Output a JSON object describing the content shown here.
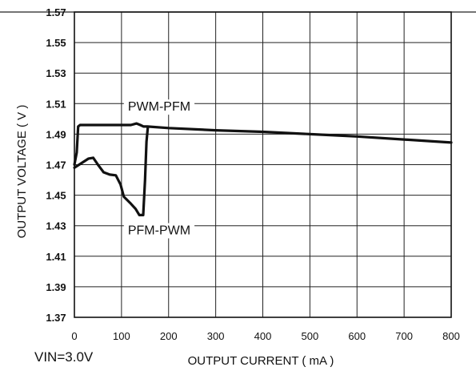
{
  "chart_data": {
    "type": "line",
    "xlabel": "OUTPUT CURRENT ( mA )",
    "ylabel": "OUTPUT VOLTAGE ( V )",
    "xlim": [
      0,
      800
    ],
    "ylim": [
      1.37,
      1.57
    ],
    "x_ticks": [
      "0",
      "100",
      "200",
      "300",
      "400",
      "500",
      "600",
      "700",
      "800"
    ],
    "y_ticks": [
      "1.37",
      "1.39",
      "1.41",
      "1.43",
      "1.45",
      "1.47",
      "1.49",
      "1.51",
      "1.53",
      "1.55",
      "1.57"
    ],
    "grid": true,
    "condition": "VIN=3.0V",
    "annotations": [
      {
        "text": "PWM-PFM",
        "x": 180,
        "y": 1.5085
      },
      {
        "text": "PFM-PWM",
        "x": 180,
        "y": 1.4275
      }
    ],
    "series": [
      {
        "values": [
          [
            0,
            1.47
          ],
          [
            5,
            1.478
          ],
          [
            8,
            1.495
          ],
          [
            12,
            1.496
          ],
          [
            60,
            1.496
          ],
          [
            120,
            1.496
          ],
          [
            132,
            1.497
          ],
          [
            140,
            1.496
          ],
          [
            147,
            1.495
          ],
          [
            155,
            1.495
          ],
          [
            200,
            1.494
          ],
          [
            300,
            1.4925
          ],
          [
            400,
            1.4915
          ],
          [
            500,
            1.49
          ],
          [
            600,
            1.4885
          ],
          [
            700,
            1.4865
          ],
          [
            800,
            1.4845
          ]
        ]
      },
      {
        "values": [
          [
            0,
            1.468
          ],
          [
            15,
            1.471
          ],
          [
            30,
            1.474
          ],
          [
            40,
            1.4745
          ],
          [
            50,
            1.47
          ],
          [
            62,
            1.465
          ],
          [
            75,
            1.4635
          ],
          [
            88,
            1.463
          ],
          [
            98,
            1.457
          ],
          [
            105,
            1.449
          ],
          [
            118,
            1.445
          ],
          [
            130,
            1.441
          ],
          [
            138,
            1.437
          ],
          [
            146,
            1.437
          ],
          [
            150,
            1.46
          ],
          [
            153,
            1.485
          ],
          [
            156,
            1.4945
          ]
        ]
      }
    ]
  }
}
